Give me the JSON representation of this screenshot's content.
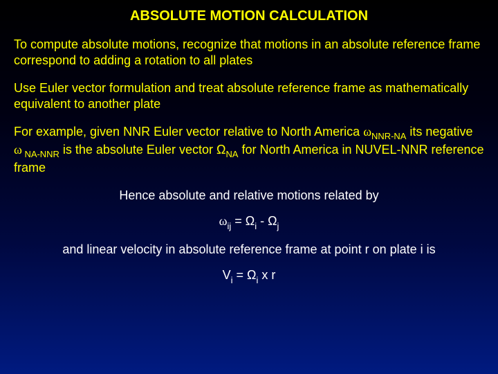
{
  "colors": {
    "title": "#ffff00",
    "body_yellow": "#ffff00",
    "body_white": "#ffffff",
    "bg_top": "#000000",
    "bg_bottom": "#001a80"
  },
  "title": "ABSOLUTE MOTION CALCULATION",
  "para1": "To compute absolute motions, recognize that motions in an absolute reference frame correspond to adding a rotation to all plates",
  "para2": "Use Euler vector formulation and treat absolute reference frame as mathematically equivalent to another plate",
  "para3_a": "For example, given NNR Euler vector relative to North America  ",
  "para3_sym1_sub": "NNR-NA",
  "para3_b": " its negative ",
  "para3_sym2_sub": " NA-NNR",
  "para3_c": " is the absolute Euler vector  ",
  "para3_omega_sub": "NA",
  "para3_d": " for North America in NUVEL-NNR reference frame",
  "center_line1": "Hence  absolute and relative motions related by",
  "eq1_lhs_sub": "ij",
  "eq1_mid": " = Ω",
  "eq1_sub_i": "i",
  "eq1_dash": "  - Ω",
  "eq1_sub_j": "j",
  "center_line2": "and linear velocity in absolute reference frame at point r on plate i is",
  "eq2_a": "V",
  "eq2_sub_i1": "i",
  "eq2_b": " = Ω",
  "eq2_sub_i2": "i",
  "eq2_c": " x  r"
}
